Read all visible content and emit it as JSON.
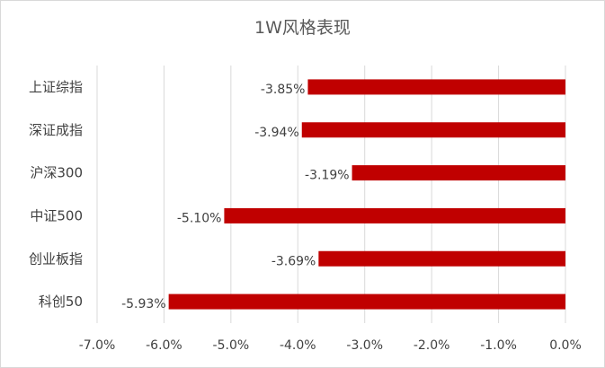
{
  "chart_data": {
    "type": "bar",
    "orientation": "horizontal",
    "title": "1W风格表现",
    "categories": [
      "上证综指",
      "深证成指",
      "沪深300",
      "中证500",
      "创业板指",
      "科创50"
    ],
    "values": [
      -3.85,
      -3.94,
      -3.19,
      -5.1,
      -3.69,
      -5.93
    ],
    "data_labels": [
      "-3.85%",
      "-3.94%",
      "-3.19%",
      "-5.10%",
      "-3.69%",
      "-5.93%"
    ],
    "xlim": [
      -7.0,
      0.0
    ],
    "x_ticks": [
      -7.0,
      -6.0,
      -5.0,
      -4.0,
      -3.0,
      -2.0,
      -1.0,
      0.0
    ],
    "x_tick_labels": [
      "-7.0%",
      "-6.0%",
      "-5.0%",
      "-4.0%",
      "-3.0%",
      "-2.0%",
      "-1.0%",
      "0.0%"
    ],
    "xlabel": "",
    "ylabel": "",
    "grid": true,
    "legend": "none",
    "bar_color": "#c00000",
    "grid_color": "#d9d9d9",
    "text_color": "#404040"
  }
}
